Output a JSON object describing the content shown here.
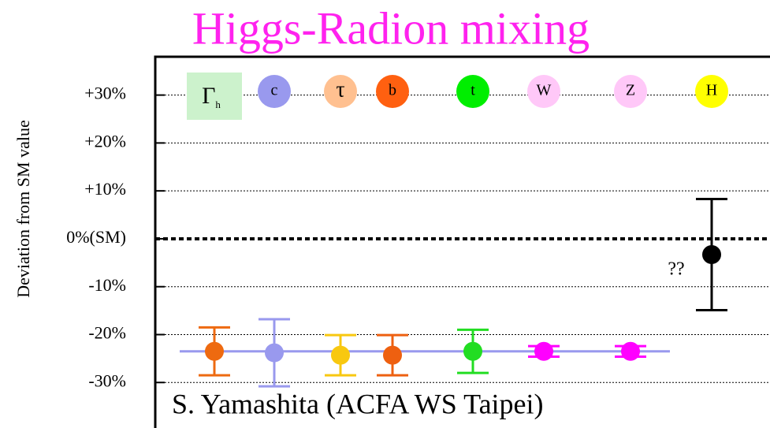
{
  "chart_data": {
    "type": "errorbar",
    "title": "Higgs-Radion mixing",
    "ylabel": "Deviation from SM value",
    "categories": [
      "Γ",
      "c",
      "τ",
      "b",
      "t",
      "W",
      "Z",
      "H"
    ],
    "gamma_subscript": "h",
    "values": [
      -23.5,
      -23.8,
      -24.3,
      -24.3,
      -23.5,
      -23.5,
      -23.5,
      -3.3
    ],
    "errors": [
      5,
      7,
      4.2,
      4.2,
      4.5,
      1.1,
      1.1,
      11.6
    ],
    "colors": [
      "#ee6a10",
      "#9999ee",
      "#f8c810",
      "#ee6010",
      "#22dd22",
      "#ff00ff",
      "#ff00ff",
      "#000000"
    ],
    "label_colors": [
      "#ccf2cc",
      "#9999ee",
      "#ffc090",
      "#ff6010",
      "#00ee00",
      "#ffc8f8",
      "#ffc8f8",
      "#ffff00"
    ],
    "reference_line": {
      "value": -23.5,
      "color": "#9999ee"
    },
    "ylim": [
      -39.5,
      38
    ],
    "yticks": [
      {
        "value": 30,
        "label": "+30%"
      },
      {
        "value": 20,
        "label": "+20%"
      },
      {
        "value": 10,
        "label": "+10%"
      },
      {
        "value": 0,
        "label": "0%(SM)"
      },
      {
        "value": -10,
        "label": "-10%"
      },
      {
        "value": -20,
        "label": "-20%"
      },
      {
        "value": -30,
        "label": "-30%"
      }
    ],
    "grid": true,
    "annotations": [
      "??",
      "S. Yamashita (ACFA WS Taipei)"
    ]
  }
}
